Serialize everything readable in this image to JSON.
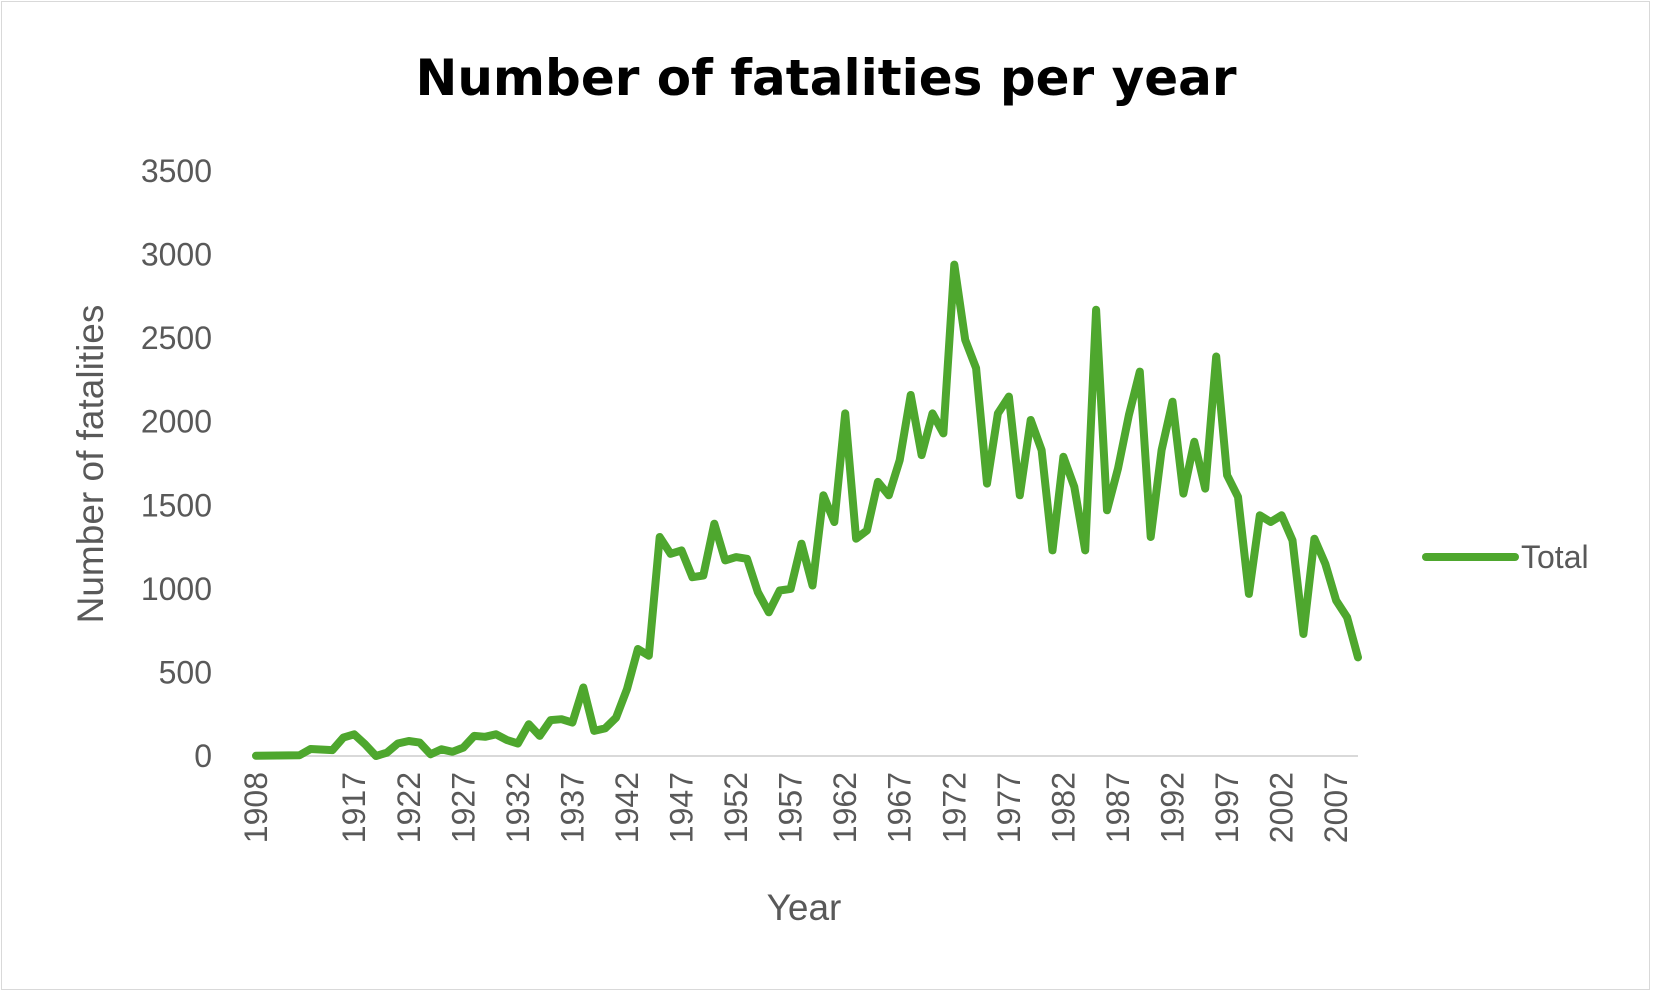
{
  "chart_data": {
    "type": "line",
    "title": "Number of fatalities per year",
    "xlabel": "Year",
    "ylabel": "Number of fatalities",
    "ylim": [
      0,
      3500
    ],
    "yticks": [
      "0",
      "500",
      "1000",
      "1500",
      "2000",
      "2500",
      "3000",
      "3500"
    ],
    "xticks": [
      "1908",
      "1917",
      "1922",
      "1927",
      "1932",
      "1937",
      "1942",
      "1947",
      "1952",
      "1957",
      "1962",
      "1967",
      "1972",
      "1977",
      "1982",
      "1987",
      "1992",
      "1997",
      "2002",
      "2007"
    ],
    "grid": false,
    "legend": "right",
    "color": "#4ea72e",
    "x": [
      1908,
      1912,
      1913,
      1915,
      1916,
      1917,
      1918,
      1919,
      1920,
      1921,
      1922,
      1923,
      1924,
      1925,
      1926,
      1927,
      1928,
      1929,
      1930,
      1931,
      1932,
      1933,
      1934,
      1935,
      1936,
      1937,
      1938,
      1939,
      1940,
      1941,
      1942,
      1943,
      1944,
      1945,
      1946,
      1947,
      1948,
      1949,
      1950,
      1951,
      1952,
      1953,
      1954,
      1955,
      1956,
      1957,
      1958,
      1959,
      1960,
      1961,
      1962,
      1963,
      1964,
      1965,
      1966,
      1967,
      1968,
      1969,
      1970,
      1971,
      1972,
      1973,
      1974,
      1975,
      1976,
      1977,
      1978,
      1979,
      1980,
      1981,
      1982,
      1983,
      1984,
      1985,
      1986,
      1987,
      1988,
      1989,
      1990,
      1991,
      1992,
      1993,
      1994,
      1995,
      1996,
      1997,
      1998,
      1999,
      2000,
      2001,
      2002,
      2003,
      2004,
      2005,
      2006,
      2007,
      2008,
      2009
    ],
    "series": [
      {
        "name": "Total",
        "values": [
          1,
          5,
          42,
          35,
          110,
          130,
          70,
          0,
          20,
          75,
          90,
          80,
          10,
          40,
          25,
          50,
          120,
          115,
          130,
          95,
          75,
          190,
          120,
          215,
          220,
          200,
          410,
          150,
          165,
          230,
          400,
          640,
          600,
          1310,
          1210,
          1230,
          1070,
          1080,
          1390,
          1170,
          1190,
          1180,
          980,
          860,
          990,
          1000,
          1270,
          1020,
          1560,
          1400,
          2050,
          1300,
          1350,
          1640,
          1560,
          1770,
          2160,
          1800,
          2050,
          1930,
          2940,
          2490,
          2320,
          1630,
          2050,
          2150,
          1560,
          2010,
          1830,
          1230,
          1790,
          1610,
          1230,
          2670,
          1470,
          1720,
          2040,
          2300,
          1310,
          1830,
          2120,
          1570,
          1880,
          1600,
          2390,
          1680,
          1550,
          970,
          1440,
          1400,
          1440,
          1290,
          730,
          1300,
          1150,
          930,
          830,
          590
        ]
      }
    ]
  }
}
